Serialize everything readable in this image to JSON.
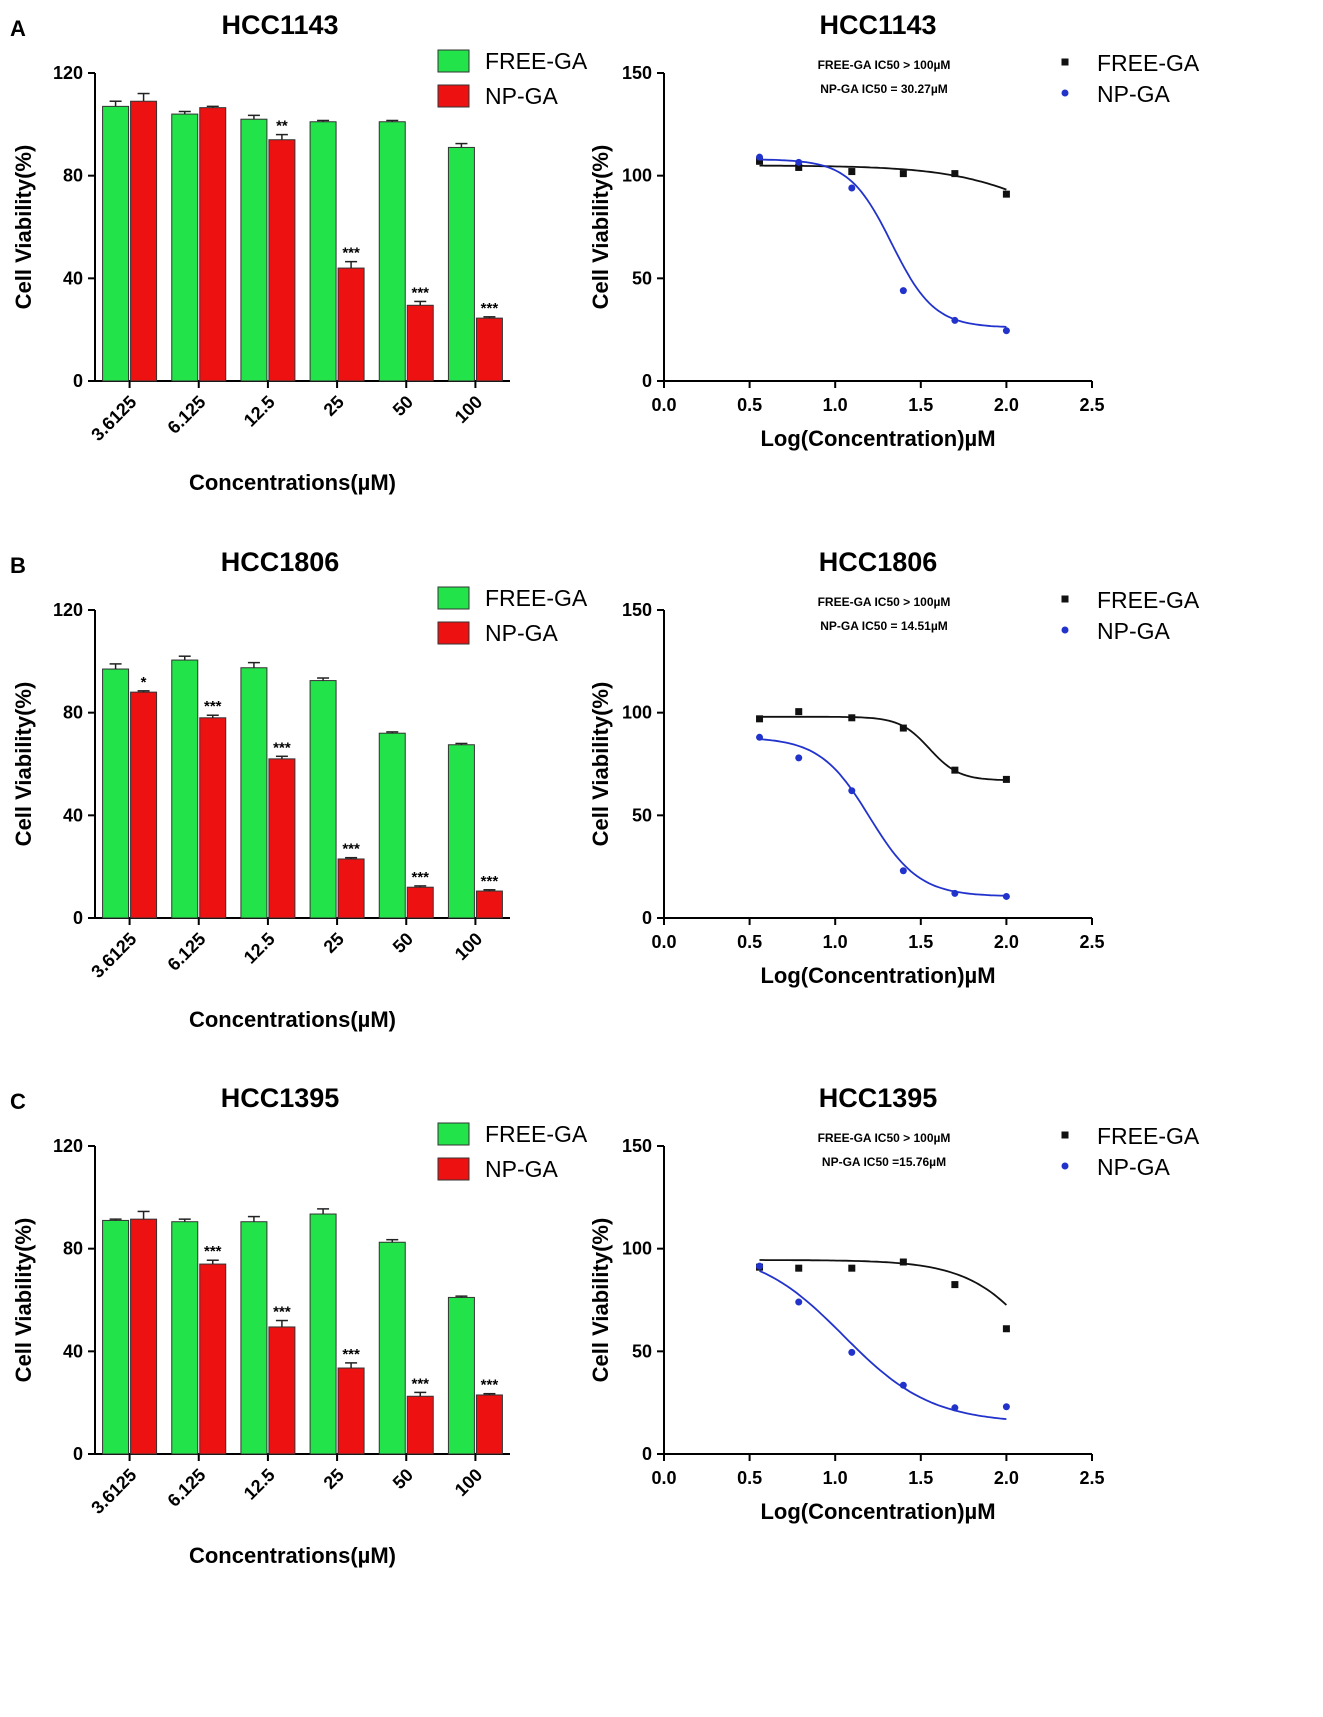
{
  "colors": {
    "free_ga_fill": "#22e34a",
    "np_ga_fill": "#ee1111",
    "free_ga_curve": "#111111",
    "np_ga_curve": "#2233cc",
    "axis": "#000000"
  },
  "chart_data": [
    {
      "panel": "A",
      "type": "bar",
      "title": "HCC1143",
      "xlabel": "Concentrations(µM)",
      "ylabel": "Cell Viability(%)",
      "ylim": [
        0,
        120
      ],
      "yticks": [
        "0",
        "40",
        "80",
        "120"
      ],
      "categories": [
        "3.6125",
        "6.125",
        "12.5",
        "25",
        "50",
        "100"
      ],
      "series": [
        {
          "name": "FREE-GA",
          "values": [
            107,
            104,
            102,
            101,
            101,
            91
          ],
          "errors": [
            2,
            1,
            1.5,
            0.5,
            0.5,
            1.5
          ]
        },
        {
          "name": "NP-GA",
          "values": [
            109,
            106.5,
            94,
            44,
            29.5,
            24.5
          ],
          "errors": [
            3,
            0.5,
            2,
            2.5,
            1.5,
            0.5
          ],
          "significance": [
            "",
            "",
            "**",
            "***",
            "***",
            "***"
          ]
        }
      ]
    },
    {
      "panel": "A",
      "type": "scatter",
      "title": "HCC1143",
      "xlabel": "Log(Concentration)µM",
      "ylabel": "Cell Viability(%)",
      "xlim": [
        0,
        2.5
      ],
      "ylim": [
        0,
        150
      ],
      "xticks": [
        "0.0",
        "0.5",
        "1.0",
        "1.5",
        "2.0",
        "2.5"
      ],
      "yticks": [
        "0",
        "50",
        "100",
        "150"
      ],
      "ic50_lines": [
        "FREE-GA  IC50 > 100µM",
        "NP-GA  IC50 = 30.27µM"
      ],
      "x": [
        0.558,
        0.787,
        1.097,
        1.398,
        1.699,
        2.0
      ],
      "series": [
        {
          "name": "FREE-GA",
          "marker": "square",
          "values": [
            107,
            104,
            102,
            101,
            101,
            91
          ],
          "fit": {
            "top": 105,
            "bottom": 60,
            "logIC50": 2.3,
            "hill": 1.5
          }
        },
        {
          "name": "NP-GA",
          "marker": "circle",
          "values": [
            109,
            106.5,
            94,
            44,
            29.5,
            24.5
          ],
          "fit": {
            "top": 108,
            "bottom": 26,
            "logIC50": 1.33,
            "hill": 3.5
          }
        }
      ]
    },
    {
      "panel": "B",
      "type": "bar",
      "title": "HCC1806",
      "xlabel": "Concentrations(µM)",
      "ylabel": "Cell Viability(%)",
      "ylim": [
        0,
        120
      ],
      "yticks": [
        "0",
        "40",
        "80",
        "120"
      ],
      "categories": [
        "3.6125",
        "6.125",
        "12.5",
        "25",
        "50",
        "100"
      ],
      "series": [
        {
          "name": "FREE-GA",
          "values": [
            97,
            100.5,
            97.5,
            92.5,
            72,
            67.5
          ],
          "errors": [
            2,
            1.5,
            2,
            1,
            0.5,
            0.5
          ]
        },
        {
          "name": "NP-GA",
          "values": [
            88,
            78,
            62,
            23,
            12,
            10.5
          ],
          "errors": [
            0.5,
            1,
            1,
            0.5,
            0.5,
            0.5
          ],
          "significance": [
            "*",
            "***",
            "***",
            "***",
            "***",
            "***"
          ]
        }
      ]
    },
    {
      "panel": "B",
      "type": "scatter",
      "title": "HCC1806",
      "xlabel": "Log(Concentration)µM",
      "ylabel": "Cell Viability(%)",
      "xlim": [
        0,
        2.5
      ],
      "ylim": [
        0,
        150
      ],
      "xticks": [
        "0.0",
        "0.5",
        "1.0",
        "1.5",
        "2.0",
        "2.5"
      ],
      "yticks": [
        "0",
        "50",
        "100",
        "150"
      ],
      "ic50_lines": [
        "FREE-GA  IC50 > 100µM",
        "NP-GA  IC50 = 14.51µM"
      ],
      "x": [
        0.558,
        0.787,
        1.097,
        1.398,
        1.699,
        2.0
      ],
      "series": [
        {
          "name": "FREE-GA",
          "marker": "square",
          "values": [
            97,
            100.5,
            97.5,
            92.5,
            72,
            67.5
          ],
          "fit": {
            "top": 98,
            "bottom": 67,
            "logIC50": 1.55,
            "hill": 5
          }
        },
        {
          "name": "NP-GA",
          "marker": "circle",
          "values": [
            88,
            78,
            62,
            23,
            12,
            10.5
          ],
          "fit": {
            "top": 88,
            "bottom": 10.5,
            "logIC50": 1.2,
            "hill": 3
          }
        }
      ]
    },
    {
      "panel": "C",
      "type": "bar",
      "title": "HCC1395",
      "xlabel": "Concentrations(µM)",
      "ylabel": "Cell Viability(%)",
      "ylim": [
        0,
        120
      ],
      "yticks": [
        "0",
        "40",
        "80",
        "120"
      ],
      "categories": [
        "3.6125",
        "6.125",
        "12.5",
        "25",
        "50",
        "100"
      ],
      "series": [
        {
          "name": "FREE-GA",
          "values": [
            91,
            90.5,
            90.5,
            93.5,
            82.5,
            61
          ],
          "errors": [
            0.5,
            1,
            2,
            2,
            1,
            0.5
          ]
        },
        {
          "name": "NP-GA",
          "values": [
            91.5,
            74,
            49.5,
            33.5,
            22.5,
            23
          ],
          "errors": [
            3,
            1.5,
            2.5,
            2,
            1.5,
            0.5
          ],
          "significance": [
            "",
            "***",
            "***",
            "***",
            "***",
            "***"
          ]
        }
      ]
    },
    {
      "panel": "C",
      "type": "scatter",
      "title": "HCC1395",
      "xlabel": "Log(Concentration)µM",
      "ylabel": "Cell Viability(%)",
      "xlim": [
        0,
        2.5
      ],
      "ylim": [
        0,
        150
      ],
      "xticks": [
        "0.0",
        "0.5",
        "1.0",
        "1.5",
        "2.0",
        "2.5"
      ],
      "yticks": [
        "0",
        "50",
        "100",
        "150"
      ],
      "ic50_lines": [
        "FREE-GA  IC50 > 100µM",
        "NP-GA  IC50 =15.76µM"
      ],
      "x": [
        0.558,
        0.787,
        1.097,
        1.398,
        1.699,
        2.0
      ],
      "series": [
        {
          "name": "FREE-GA",
          "marker": "square",
          "values": [
            91,
            90.5,
            90.5,
            93.5,
            82.5,
            61
          ],
          "fit": {
            "top": 94.5,
            "bottom": 0,
            "logIC50": 2.26,
            "hill": 2
          }
        },
        {
          "name": "NP-GA",
          "marker": "circle",
          "values": [
            91.5,
            74,
            49.5,
            33.5,
            22.5,
            23
          ],
          "fit": {
            "top": 100,
            "bottom": 15,
            "logIC50": 1.05,
            "hill": 1.7
          }
        }
      ]
    }
  ]
}
